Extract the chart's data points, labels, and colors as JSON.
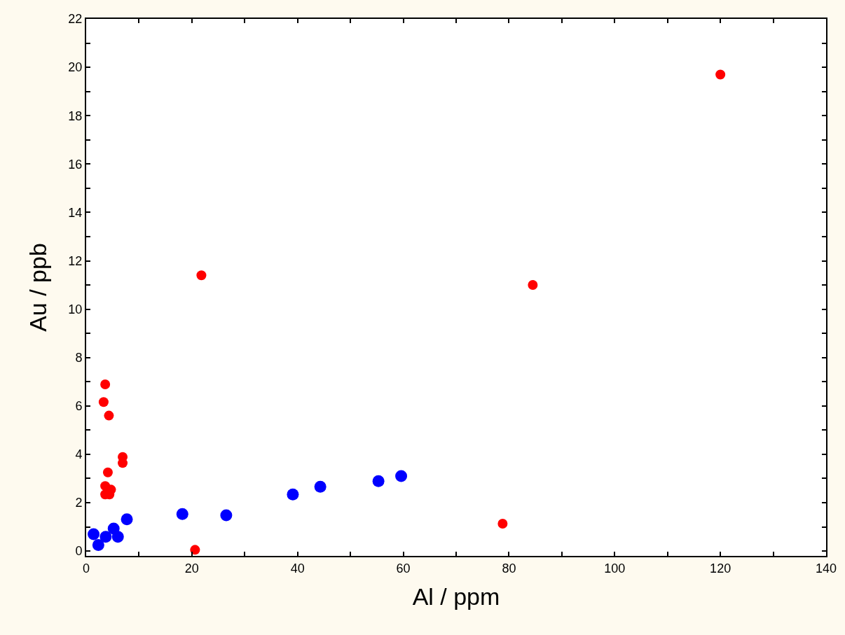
{
  "chart_data": {
    "type": "scatter",
    "xlabel": "Al / ppm",
    "ylabel": "Au / ppb",
    "marker": "circle",
    "xlim": [
      0,
      140
    ],
    "ylim": [
      -0.2,
      22
    ],
    "xticks": [
      0,
      {
        "value": 10,
        "label": null
      },
      20,
      {
        "value": 30,
        "label": null
      },
      40,
      {
        "value": 50,
        "label": null
      },
      60,
      {
        "value": 70,
        "label": null
      },
      80,
      {
        "value": 90,
        "label": null
      },
      100,
      {
        "value": 110,
        "label": null
      },
      120,
      {
        "value": 130,
        "label": null
      },
      140
    ],
    "yticks": [
      0,
      {
        "value": 1,
        "label": null
      },
      2,
      {
        "value": 3,
        "label": null
      },
      4,
      {
        "value": 5,
        "label": null
      },
      6,
      {
        "value": 7,
        "label": null
      },
      8,
      {
        "value": 9,
        "label": null
      },
      10,
      {
        "value": 11,
        "label": null
      },
      12,
      {
        "value": 13,
        "label": null
      },
      14,
      {
        "value": 15,
        "label": null
      },
      16,
      {
        "value": 17,
        "label": null
      },
      18,
      {
        "value": 19,
        "label": null
      },
      20,
      {
        "value": 21,
        "label": null
      },
      22
    ],
    "series": [
      {
        "color": "#ff0000",
        "x": [
          120,
          21.8,
          84.5,
          78.8,
          20.6,
          3.6,
          3.3,
          4.3,
          6.9,
          6.9,
          4.1,
          3.6,
          4.7,
          3.6,
          4.4
        ],
        "values": [
          19.7,
          11.4,
          11.0,
          1.13,
          0.05,
          6.89,
          6.16,
          5.6,
          3.89,
          3.64,
          3.25,
          2.69,
          2.54,
          2.34,
          2.34
        ]
      },
      {
        "color": "#0000ff",
        "x": [
          1.4,
          2.3,
          3.7,
          5.2,
          6.0,
          7.7,
          18.2,
          26.5,
          39.1,
          44.3,
          55.3,
          59.6
        ],
        "values": [
          0.7,
          0.25,
          0.59,
          0.93,
          0.59,
          1.31,
          1.53,
          1.48,
          2.34,
          2.66,
          2.89,
          3.1
        ]
      }
    ]
  }
}
